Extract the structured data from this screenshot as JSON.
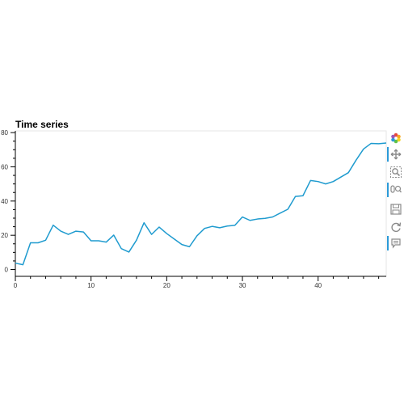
{
  "chart_data": {
    "type": "line",
    "title": "Time series",
    "xlabel": "",
    "ylabel": "",
    "x": [
      0,
      1,
      2,
      3,
      4,
      5,
      6,
      7,
      8,
      9,
      10,
      11,
      12,
      13,
      14,
      15,
      16,
      17,
      18,
      19,
      20,
      21,
      22,
      23,
      24,
      25,
      26,
      27,
      28,
      29,
      30,
      31,
      32,
      33,
      34,
      35,
      36,
      37,
      38,
      39,
      40,
      41,
      42,
      43,
      44,
      45,
      46,
      47,
      48,
      49
    ],
    "series": [
      {
        "color": "#1f9bcf",
        "values": [
          3.7,
          2.8,
          15.6,
          15.6,
          17.1,
          25.9,
          22.4,
          20.5,
          22.4,
          21.9,
          16.8,
          16.8,
          16.0,
          20.1,
          12.2,
          10.2,
          17.1,
          27.3,
          20.5,
          24.8,
          21.0,
          17.8,
          14.6,
          13.3,
          19.7,
          24.0,
          25.2,
          24.4,
          25.4,
          25.8,
          30.7,
          28.7,
          29.5,
          29.9,
          30.7,
          33.0,
          35.2,
          42.7,
          43.1,
          52.0,
          51.4,
          50.0,
          51.4,
          54.0,
          56.6,
          63.8,
          70.4,
          73.7,
          73.5,
          73.9
        ]
      }
    ],
    "xlim": [
      0,
      49
    ],
    "ylim": [
      -4,
      81
    ],
    "xticks": [
      0,
      10,
      20,
      30,
      40
    ],
    "yticks": [
      0,
      20,
      40,
      60,
      80
    ],
    "grid": false,
    "legend": "none"
  },
  "toolbar": {
    "tools": [
      {
        "name": "bokeh-logo-icon",
        "active": false
      },
      {
        "name": "pan-icon",
        "active": true
      },
      {
        "name": "box-zoom-icon",
        "active": false
      },
      {
        "name": "wheel-zoom-icon",
        "active": true
      },
      {
        "name": "save-icon",
        "active": false
      },
      {
        "name": "reset-icon",
        "active": false
      },
      {
        "name": "hover-icon",
        "active": true
      }
    ]
  }
}
